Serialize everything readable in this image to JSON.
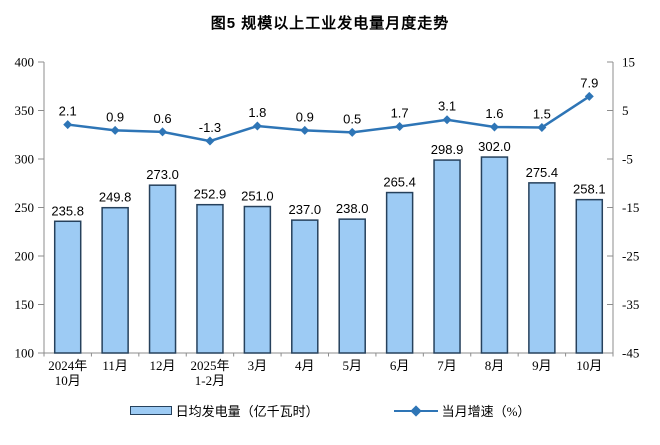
{
  "title": "图5  规模以上工业发电量月度走势",
  "legend": {
    "bar_label": "日均发电量（亿千瓦时）",
    "line_label": "当月增速（%）"
  },
  "colors": {
    "bar_fill": "#9DCBF4",
    "bar_border": "#26415C",
    "line": "#2E75B6",
    "axis": "#8C8C8C",
    "text": "#000000"
  },
  "chart_data": {
    "type": "bar",
    "subtype": "bar+line combo, dual axis",
    "title": "图5  规模以上工业发电量月度走势",
    "xlabel": "",
    "ylabel_left": "日均发电量（亿千瓦时）",
    "ylabel_right": "当月增速（%）",
    "grid": false,
    "legend_position": "bottom",
    "categories": [
      [
        "2024年",
        "10月"
      ],
      [
        "11月"
      ],
      [
        "12月"
      ],
      [
        "2025年",
        "1-2月"
      ],
      [
        "3月"
      ],
      [
        "4月"
      ],
      [
        "5月"
      ],
      [
        "6月"
      ],
      [
        "7月"
      ],
      [
        "8月"
      ],
      [
        "9月"
      ],
      [
        "10月"
      ]
    ],
    "series": [
      {
        "name": "日均发电量（亿千瓦时）",
        "type": "bar",
        "axis": "left",
        "values": [
          235.8,
          249.8,
          273.0,
          252.9,
          251.0,
          237.0,
          238.0,
          265.4,
          298.9,
          302.0,
          275.4,
          258.1
        ]
      },
      {
        "name": "当月增速（%）",
        "type": "line",
        "axis": "right",
        "values": [
          2.1,
          0.9,
          0.6,
          -1.3,
          1.8,
          0.9,
          0.5,
          1.7,
          3.1,
          1.6,
          1.5,
          7.9
        ]
      }
    ],
    "left_axis": {
      "min": 100,
      "max": 400,
      "step": 50,
      "ticks": [
        400,
        350,
        300,
        250,
        200,
        150,
        100
      ]
    },
    "right_axis": {
      "min": -45,
      "max": 15,
      "step": 10,
      "ticks": [
        15,
        5,
        -5,
        -15,
        -25,
        -35,
        -45
      ]
    }
  }
}
